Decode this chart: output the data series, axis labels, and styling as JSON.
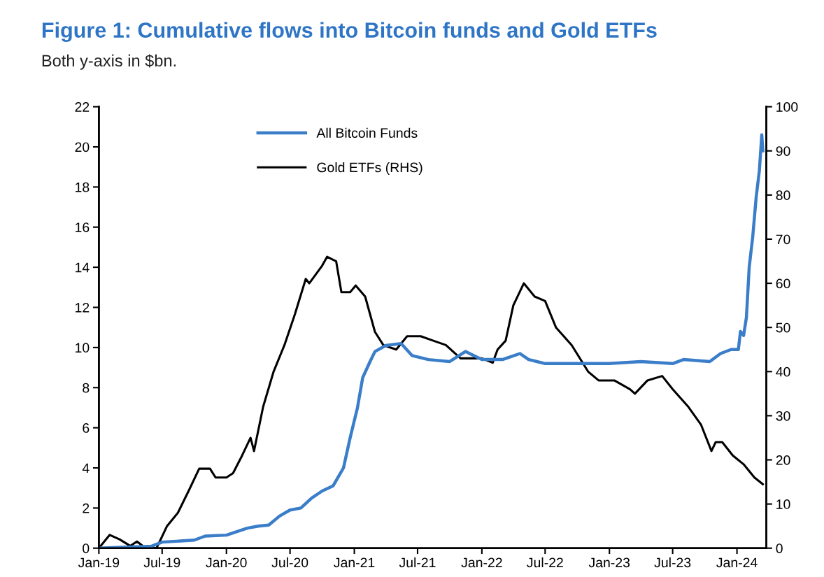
{
  "chart_data": {
    "type": "line",
    "title": "Figure 1: Cumulative flows into Bitcoin funds and Gold ETFs",
    "subtitle": "Both y-axis in $bn.",
    "xlim": [
      "2019-01-01",
      "2024-03-25"
    ],
    "xticks": [
      {
        "value": "2019-01-01",
        "label": "Jan-19"
      },
      {
        "value": "2019-07-01",
        "label": "Jul-19"
      },
      {
        "value": "2020-01-01",
        "label": "Jan-20"
      },
      {
        "value": "2020-07-01",
        "label": "Jul-20"
      },
      {
        "value": "2021-01-01",
        "label": "Jan-21"
      },
      {
        "value": "2021-07-01",
        "label": "Jul-21"
      },
      {
        "value": "2022-01-01",
        "label": "Jan-22"
      },
      {
        "value": "2022-07-01",
        "label": "Jul-22"
      },
      {
        "value": "2023-01-01",
        "label": "Jan-23"
      },
      {
        "value": "2023-07-01",
        "label": "Jul-23"
      },
      {
        "value": "2024-01-01",
        "label": "Jan-24"
      }
    ],
    "ylim": [
      0,
      22
    ],
    "yticks": [
      0,
      2,
      4,
      6,
      8,
      10,
      12,
      14,
      16,
      18,
      20,
      22
    ],
    "y2lim": [
      0,
      100
    ],
    "y2ticks": [
      0,
      10,
      20,
      30,
      40,
      50,
      60,
      70,
      80,
      90,
      100
    ],
    "grid": false,
    "legend": "top left",
    "marker": "none",
    "line_style": "solid",
    "series": [
      {
        "name": "All Bitcoin Funds",
        "color": "#3a7dc9",
        "x": [
          "2019-01-01",
          "2019-06-01",
          "2019-07-01",
          "2019-10-01",
          "2019-11-01",
          "2020-01-01",
          "2020-03-01",
          "2020-04-01",
          "2020-05-01",
          "2020-06-01",
          "2020-07-01",
          "2020-08-01",
          "2020-09-01",
          "2020-10-01",
          "2020-11-01",
          "2020-12-01",
          "2020-12-20",
          "2021-01-10",
          "2021-01-25",
          "2021-02-15",
          "2021-03-01",
          "2021-04-01",
          "2021-05-15",
          "2021-06-15",
          "2021-08-01",
          "2021-10-01",
          "2021-11-15",
          "2022-01-01",
          "2022-03-01",
          "2022-04-20",
          "2022-05-15",
          "2022-07-01",
          "2022-10-01",
          "2023-01-01",
          "2023-04-01",
          "2023-07-01",
          "2023-08-01",
          "2023-10-15",
          "2023-11-15",
          "2023-12-15",
          "2024-01-05",
          "2024-01-11",
          "2024-01-20",
          "2024-01-28",
          "2024-02-05",
          "2024-02-15",
          "2024-02-25",
          "2024-03-05",
          "2024-03-12",
          "2024-03-15"
        ],
        "values": [
          0,
          0.1,
          0.3,
          0.4,
          0.6,
          0.65,
          1.0,
          1.1,
          1.15,
          1.6,
          1.9,
          2.0,
          2.5,
          2.85,
          3.1,
          4.0,
          5.5,
          7.0,
          8.5,
          9.3,
          9.8,
          10.1,
          10.2,
          9.6,
          9.4,
          9.3,
          9.8,
          9.4,
          9.4,
          9.7,
          9.4,
          9.2,
          9.2,
          9.2,
          9.3,
          9.2,
          9.4,
          9.3,
          9.7,
          9.9,
          9.9,
          10.8,
          10.6,
          11.5,
          14.0,
          15.5,
          17.5,
          18.8,
          20.6,
          19.8
        ]
      },
      {
        "name": "Gold ETFs (RHS)",
        "color": "#000000",
        "axis": "y2",
        "x": [
          "2019-01-01",
          "2019-02-01",
          "2019-03-01",
          "2019-04-01",
          "2019-04-20",
          "2019-05-15",
          "2019-06-15",
          "2019-07-15",
          "2019-08-15",
          "2019-09-15",
          "2019-10-15",
          "2019-11-15",
          "2019-12-01",
          "2020-01-01",
          "2020-01-20",
          "2020-02-15",
          "2020-03-10",
          "2020-03-20",
          "2020-04-15",
          "2020-05-15",
          "2020-06-15",
          "2020-07-15",
          "2020-08-15",
          "2020-08-25",
          "2020-10-01",
          "2020-10-15",
          "2020-11-10",
          "2020-11-25",
          "2020-12-20",
          "2021-01-05",
          "2021-02-01",
          "2021-03-01",
          "2021-03-25",
          "2021-05-01",
          "2021-06-01",
          "2021-07-10",
          "2021-08-15",
          "2021-09-20",
          "2021-11-01",
          "2021-12-01",
          "2022-01-01",
          "2022-02-01",
          "2022-02-15",
          "2022-03-10",
          "2022-04-01",
          "2022-05-01",
          "2022-06-01",
          "2022-07-01",
          "2022-08-01",
          "2022-09-15",
          "2022-11-01",
          "2022-12-01",
          "2023-01-15",
          "2023-03-01",
          "2023-03-15",
          "2023-04-20",
          "2023-06-01",
          "2023-07-01",
          "2023-08-15",
          "2023-09-20",
          "2023-10-20",
          "2023-11-01",
          "2023-11-20",
          "2023-12-20",
          "2024-01-20",
          "2024-02-20",
          "2024-03-15"
        ],
        "values": [
          0,
          3,
          2,
          0.5,
          1.5,
          0,
          0,
          5,
          8,
          13,
          18,
          18,
          16,
          16,
          17,
          21,
          25,
          22,
          32,
          40,
          46,
          53,
          61,
          60,
          64,
          66,
          65,
          58,
          58,
          59.5,
          57,
          49,
          46,
          45,
          48,
          48,
          47,
          46,
          43,
          43,
          43,
          42,
          45,
          47,
          55,
          60,
          57,
          56,
          50,
          46,
          40,
          38,
          38,
          36,
          35,
          38,
          39,
          36,
          32,
          28,
          22,
          24,
          24,
          21,
          19,
          16,
          14.5
        ]
      }
    ]
  }
}
